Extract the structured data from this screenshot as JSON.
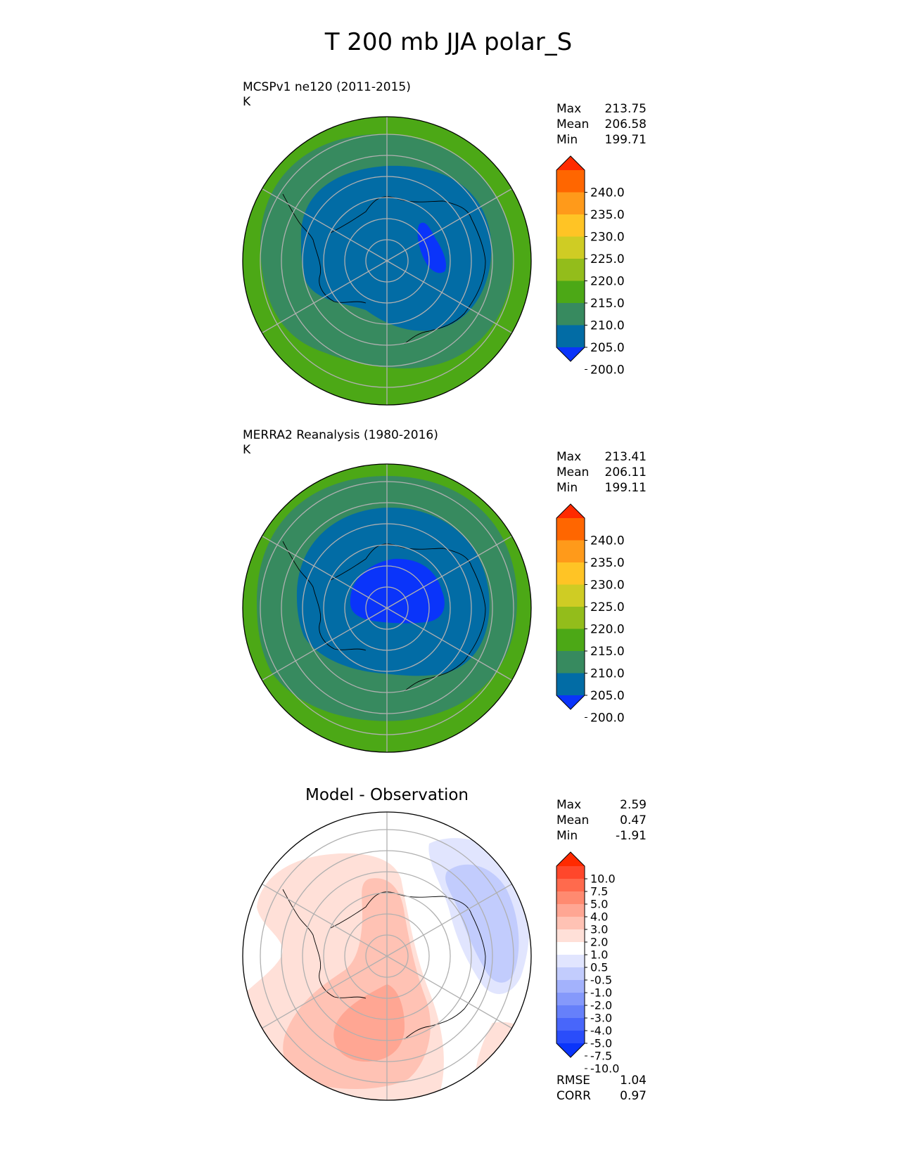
{
  "figure": {
    "title": "T 200 mb JJA polar_S"
  },
  "chart_data": [
    {
      "type": "contour-map",
      "projection": "south-polar-stereographic",
      "title": "MCSPv1 ne120 (2011-2015)",
      "units": "K",
      "stats": [
        {
          "label": "Max",
          "value": "213.75"
        },
        {
          "label": "Mean",
          "value": "206.58"
        },
        {
          "label": "Min",
          "value": "199.71"
        }
      ],
      "colorbar": {
        "ticks": [
          "240.0",
          "235.0",
          "230.0",
          "225.0",
          "220.0",
          "215.0",
          "210.0",
          "205.0",
          "200.0"
        ],
        "colors": [
          "#ff2a00",
          "#ff6600",
          "#ff9a1a",
          "#ffc425",
          "#cfcc24",
          "#93bd1b",
          "#4ca816",
          "#378a5f",
          "#026ca5",
          "#0a34fa"
        ],
        "extend": "both"
      },
      "contours": [
        {
          "level": "210-215",
          "color": "#4ca816"
        },
        {
          "level": "205-210",
          "color": "#378a5f"
        },
        {
          "level": "200-205",
          "color": "#026ca5"
        },
        {
          "level": "<200",
          "color": "#0a34fa"
        }
      ]
    },
    {
      "type": "contour-map",
      "projection": "south-polar-stereographic",
      "title": "MERRA2 Reanalysis (1980-2016)",
      "units": "K",
      "stats": [
        {
          "label": "Max",
          "value": "213.41"
        },
        {
          "label": "Mean",
          "value": "206.11"
        },
        {
          "label": "Min",
          "value": "199.11"
        }
      ],
      "colorbar": {
        "ticks": [
          "240.0",
          "235.0",
          "230.0",
          "225.0",
          "220.0",
          "215.0",
          "210.0",
          "205.0",
          "200.0"
        ],
        "colors": [
          "#ff2a00",
          "#ff6600",
          "#ff9a1a",
          "#ffc425",
          "#cfcc24",
          "#93bd1b",
          "#4ca816",
          "#378a5f",
          "#026ca5",
          "#0a34fa"
        ],
        "extend": "both"
      },
      "contours": [
        {
          "level": "210-215",
          "color": "#4ca816"
        },
        {
          "level": "205-210",
          "color": "#378a5f"
        },
        {
          "level": "200-205",
          "color": "#026ca5"
        },
        {
          "level": "<200",
          "color": "#0a34fa"
        }
      ]
    },
    {
      "type": "contour-map",
      "projection": "south-polar-stereographic",
      "title": "Model - Observation",
      "stats": [
        {
          "label": "Max",
          "value": "2.59"
        },
        {
          "label": "Mean",
          "value": "0.47"
        },
        {
          "label": "Min",
          "value": "-1.91"
        }
      ],
      "metrics": [
        {
          "label": "RMSE",
          "value": "1.04"
        },
        {
          "label": "CORR",
          "value": "0.97"
        }
      ],
      "colorbar": {
        "ticks": [
          "10.0",
          "7.5",
          "5.0",
          "4.0",
          "3.0",
          "2.0",
          "1.0",
          "0.5",
          "-0.5",
          "-1.0",
          "-2.0",
          "-3.0",
          "-4.0",
          "-5.0",
          "-7.5",
          "-10.0"
        ],
        "colors": [
          "#ff2a00",
          "#ff472b",
          "#ff6a4d",
          "#ff8a70",
          "#ffa693",
          "#ffc2b4",
          "#ffe0d8",
          "#ffffff",
          "#e1e5fe",
          "#c2ccfd",
          "#a3b2fc",
          "#8599fb",
          "#6680fa",
          "#4866fa",
          "#2a4dfa",
          "#0a34fa"
        ],
        "extend": "both"
      },
      "contours": [
        {
          "level": "0.5-1.0",
          "color": "#ffe0d8"
        },
        {
          "level": "1.0-2.0",
          "color": "#ffc2b4"
        },
        {
          "level": "2.0-3.0",
          "color": "#ffa693"
        },
        {
          "level": "-1.0--0.5",
          "color": "#e1e5fe"
        },
        {
          "level": "-2.0--1.0",
          "color": "#c2ccfd"
        }
      ]
    }
  ]
}
